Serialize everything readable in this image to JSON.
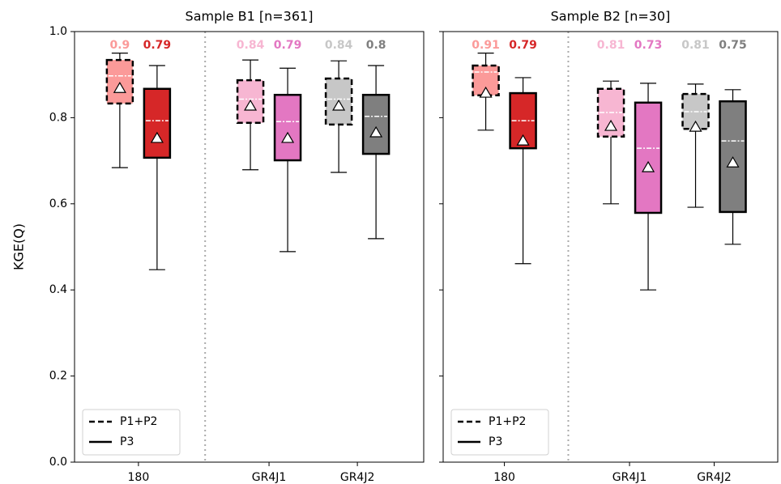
{
  "chart_data": [
    {
      "type": "box",
      "title": "Sample B1 [n=361]",
      "ylabel": "KGE(Q)",
      "categories": [
        "180",
        "GR4J1",
        "GR4J2"
      ],
      "ylim": [
        0,
        1
      ],
      "yticks": [
        {
          "value": 0,
          "label": "0.0"
        },
        {
          "value": 0.2,
          "label": "0.2"
        },
        {
          "value": 0.4,
          "label": "0.4"
        },
        {
          "value": 0.6,
          "label": "0.6"
        },
        {
          "value": 0.8,
          "label": "0.8"
        },
        {
          "value": 1,
          "label": "1.0"
        }
      ],
      "legend": "lower left",
      "series": [
        {
          "name": "P1+P2",
          "linestyle": "dashed",
          "colors": [
            "#fb9a99",
            "#f7b6d2",
            "#c7c7c7"
          ],
          "whislo": [
            0.684,
            0.679,
            0.673
          ],
          "q1": [
            0.833,
            0.788,
            0.784
          ],
          "med": [
            0.897,
            0.843,
            0.843
          ],
          "q3": [
            0.934,
            0.887,
            0.891
          ],
          "whishi": [
            0.95,
            0.934,
            0.932
          ],
          "mean": [
            0.868,
            0.827,
            0.827
          ],
          "value_labels": [
            "0.9",
            "0.84",
            "0.84"
          ]
        },
        {
          "name": "P3",
          "linestyle": "solid",
          "colors": [
            "#d62728",
            "#e377c2",
            "#7f7f7f"
          ],
          "whislo": [
            0.447,
            0.489,
            0.519
          ],
          "q1": [
            0.707,
            0.701,
            0.716
          ],
          "med": [
            0.793,
            0.791,
            0.803
          ],
          "q3": [
            0.867,
            0.853,
            0.853
          ],
          "whishi": [
            0.921,
            0.915,
            0.921
          ],
          "mean": [
            0.752,
            0.752,
            0.765
          ],
          "value_labels": [
            "0.79",
            "0.79",
            "0.8"
          ]
        }
      ]
    },
    {
      "type": "box",
      "title": "Sample B2 [n=30]",
      "categories": [
        "180",
        "GR4J1",
        "GR4J2"
      ],
      "ylim": [
        0,
        1
      ],
      "yticks": [
        0,
        0.2,
        0.4,
        0.6,
        0.8,
        1
      ],
      "legend": "lower left",
      "series": [
        {
          "name": "P1+P2",
          "linestyle": "dashed",
          "colors": [
            "#fb9a99",
            "#f7b6d2",
            "#c7c7c7"
          ],
          "whislo": [
            0.771,
            0.6,
            0.592
          ],
          "q1": [
            0.852,
            0.756,
            0.774
          ],
          "med": [
            0.906,
            0.812,
            0.814
          ],
          "q3": [
            0.921,
            0.867,
            0.855
          ],
          "whishi": [
            0.95,
            0.885,
            0.878
          ],
          "mean": [
            0.857,
            0.78,
            0.778
          ],
          "value_labels": [
            "0.91",
            "0.81",
            "0.81"
          ]
        },
        {
          "name": "P3",
          "linestyle": "solid",
          "colors": [
            "#d62728",
            "#e377c2",
            "#7f7f7f"
          ],
          "whislo": [
            0.461,
            0.4,
            0.506
          ],
          "q1": [
            0.729,
            0.579,
            0.581
          ],
          "med": [
            0.793,
            0.729,
            0.746
          ],
          "q3": [
            0.857,
            0.835,
            0.838
          ],
          "whishi": [
            0.893,
            0.88,
            0.865
          ],
          "mean": [
            0.746,
            0.684,
            0.695
          ],
          "value_labels": [
            "0.79",
            "0.73",
            "0.75"
          ]
        }
      ]
    }
  ]
}
